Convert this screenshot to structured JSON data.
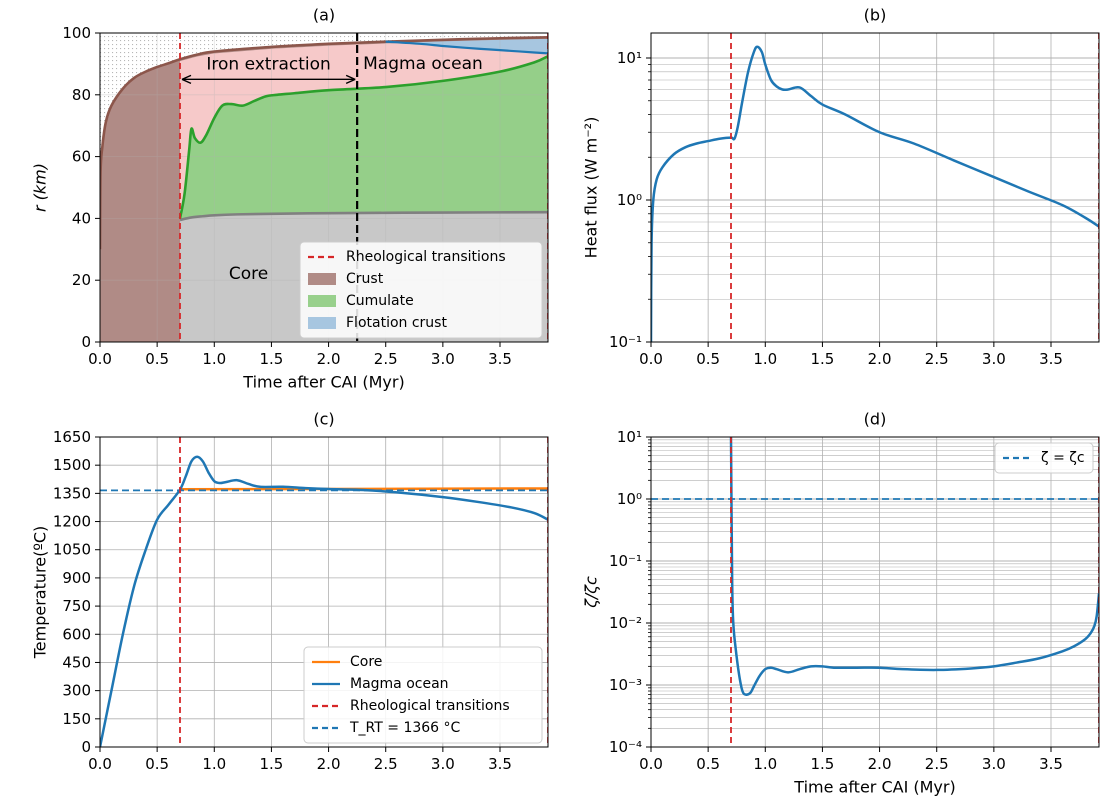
{
  "chart_data": [
    {
      "id": "a",
      "type": "area",
      "title": "(a)",
      "xlabel": "Time after CAI (Myr)",
      "ylabel": "r (km)",
      "xlim": [
        0,
        3.92
      ],
      "ylim": [
        0,
        100
      ],
      "xticks": [
        0,
        0.5,
        1,
        1.5,
        2,
        2.5,
        3,
        3.5
      ],
      "xtick_labels": [
        "0.0",
        "0.5",
        "1.0",
        "1.5",
        "2.0",
        "2.5",
        "3.0",
        "3.5"
      ],
      "yticks": [
        0,
        20,
        40,
        60,
        80,
        100
      ],
      "ytick_labels": [
        "0",
        "20",
        "40",
        "60",
        "80",
        "100"
      ],
      "grid": true,
      "legend_position": "lower-right",
      "series": [
        {
          "name": "Crust",
          "color": "#8c564b",
          "x": [
            0,
            0.005,
            0.02,
            0.05,
            0.1,
            0.2,
            0.3,
            0.4,
            0.5,
            0.6,
            0.7,
            0.85,
            1.0,
            1.5,
            2.0,
            2.5,
            3.0,
            3.5,
            3.92
          ],
          "y": [
            30,
            55,
            63,
            71,
            76.5,
            82,
            85.5,
            87.5,
            89,
            90.2,
            91.5,
            93,
            94,
            95.5,
            96.5,
            97.2,
            97.8,
            98.3,
            98.6
          ]
        },
        {
          "name": "Cumulate",
          "color": "#2ca02c",
          "x": [
            0.7,
            0.74,
            0.78,
            0.8,
            0.83,
            0.88,
            0.93,
            1.0,
            1.07,
            1.15,
            1.25,
            1.35,
            1.45,
            1.55,
            1.7,
            2.0,
            2.5,
            3.0,
            3.5,
            3.8,
            3.92
          ],
          "y": [
            40,
            48,
            62,
            69,
            66,
            64.5,
            67,
            72.5,
            76.5,
            77,
            76.5,
            78,
            79.5,
            80,
            80.5,
            81.5,
            82.5,
            84.5,
            87.5,
            90.5,
            92.5
          ]
        },
        {
          "name": "Core",
          "color": "#808080",
          "x": [
            0.7,
            0.8,
            0.9,
            1.0,
            1.2,
            1.5,
            2.0,
            2.5,
            3.0,
            3.92
          ],
          "y": [
            39.5,
            40.3,
            40.7,
            41,
            41.3,
            41.5,
            41.7,
            41.8,
            41.9,
            42
          ]
        },
        {
          "name": "Flotation crust",
          "color": "#1f77b4",
          "x": [
            2.5,
            2.8,
            3.0,
            3.2,
            3.4,
            3.6,
            3.8,
            3.92
          ],
          "y": [
            97.2,
            96.5,
            95.8,
            95.2,
            94.7,
            94.2,
            93.7,
            93.4
          ]
        }
      ],
      "vlines": [
        {
          "name": "Rheological transitions",
          "x": 0.7,
          "color": "#d62728"
        },
        {
          "name": "Rheological transitions",
          "x": 3.92,
          "color": "#d62728"
        },
        {
          "name": "Iron extraction end",
          "x": 2.25,
          "color": "#000000"
        }
      ],
      "annotations": [
        {
          "text": "Iron extraction",
          "x_from": 0.7,
          "x_to": 2.25,
          "y": 85
        },
        {
          "text": "Magma ocean",
          "x": 2.25,
          "y": 90,
          "color": "#d62728"
        },
        {
          "text": "Core",
          "x": 1.3,
          "y": 22,
          "color": "#808080"
        }
      ],
      "legend": [
        {
          "label": "Rheological transitions",
          "kind": "dashed-line",
          "color": "#d62728"
        },
        {
          "label": "Crust",
          "kind": "patch",
          "color": "#b08b86"
        },
        {
          "label": "Cumulate",
          "kind": "patch",
          "color": "#98d08c"
        },
        {
          "label": "Flotation crust",
          "kind": "patch",
          "color": "#a7c6e0"
        }
      ]
    },
    {
      "id": "b",
      "type": "line",
      "title": "(b)",
      "xlabel": "",
      "ylabel": "Heat flux (W m⁻²)",
      "xlim": [
        0,
        3.92
      ],
      "ylim": [
        0.1,
        15
      ],
      "yscale": "log",
      "xticks": [
        0,
        0.5,
        1,
        1.5,
        2,
        2.5,
        3,
        3.5
      ],
      "xtick_labels": [
        "0.0",
        "0.5",
        "1.0",
        "1.5",
        "2.0",
        "2.5",
        "3.0",
        "3.5"
      ],
      "yticks": [
        0.1,
        1,
        10
      ],
      "ytick_labels": [
        "10⁻¹",
        "10⁰",
        "10¹"
      ],
      "grid": true,
      "series": [
        {
          "name": "Heat flux",
          "color": "#1f77b4",
          "x": [
            0,
            0.005,
            0.02,
            0.05,
            0.1,
            0.2,
            0.3,
            0.4,
            0.5,
            0.6,
            0.7,
            0.73,
            0.76,
            0.8,
            0.85,
            0.9,
            0.93,
            0.97,
            1.0,
            1.05,
            1.1,
            1.15,
            1.2,
            1.3,
            1.4,
            1.5,
            1.7,
            2.0,
            2.3,
            2.65,
            3.0,
            3.3,
            3.6,
            3.8,
            3.92
          ],
          "y": [
            0.1,
            0.5,
            1.0,
            1.4,
            1.7,
            2.1,
            2.35,
            2.5,
            2.6,
            2.7,
            2.75,
            2.7,
            3.3,
            5.0,
            8.0,
            11.0,
            12.0,
            11.0,
            9.0,
            7.0,
            6.3,
            6.0,
            6.0,
            6.2,
            5.4,
            4.7,
            4.0,
            3.0,
            2.5,
            1.9,
            1.45,
            1.15,
            0.92,
            0.75,
            0.65
          ]
        }
      ],
      "vlines": [
        {
          "name": "Rheological transitions",
          "x": 0.7,
          "color": "#d62728"
        },
        {
          "name": "Rheological transitions",
          "x": 3.92,
          "color": "#d62728"
        }
      ]
    },
    {
      "id": "c",
      "type": "line",
      "title": "(c)",
      "xlabel": "",
      "ylabel": "Temperature(ºC)",
      "xlim": [
        0,
        3.92
      ],
      "ylim": [
        0,
        1650
      ],
      "xticks": [
        0,
        0.5,
        1,
        1.5,
        2,
        2.5,
        3,
        3.5
      ],
      "xtick_labels": [
        "0.0",
        "0.5",
        "1.0",
        "1.5",
        "2.0",
        "2.5",
        "3.0",
        "3.5"
      ],
      "yticks": [
        0,
        150,
        300,
        450,
        600,
        750,
        900,
        1050,
        1200,
        1350,
        1500,
        1650
      ],
      "ytick_labels": [
        "0",
        "150",
        "300",
        "450",
        "600",
        "750",
        "900",
        "1050",
        "1200",
        "1350",
        "1500",
        "1650"
      ],
      "grid": true,
      "legend_position": "lower-right",
      "series": [
        {
          "name": "Core",
          "color": "#ff7f0e",
          "x": [
            0.7,
            3.92
          ],
          "y": [
            1372,
            1376
          ]
        },
        {
          "name": "Magma ocean",
          "color": "#1f77b4",
          "x": [
            0,
            0.1,
            0.2,
            0.3,
            0.4,
            0.5,
            0.6,
            0.7,
            0.75,
            0.8,
            0.85,
            0.9,
            0.95,
            1.0,
            1.05,
            1.1,
            1.2,
            1.3,
            1.4,
            1.6,
            1.8,
            2.0,
            2.3,
            2.6,
            3.0,
            3.3,
            3.6,
            3.8,
            3.92
          ],
          "y": [
            0,
            300,
            600,
            860,
            1050,
            1210,
            1290,
            1370,
            1440,
            1520,
            1545,
            1520,
            1460,
            1415,
            1405,
            1410,
            1420,
            1400,
            1385,
            1385,
            1378,
            1373,
            1368,
            1355,
            1330,
            1305,
            1275,
            1245,
            1210
          ]
        }
      ],
      "hlines": [
        {
          "name": "T_RT = 1366 °C",
          "y": 1366,
          "color": "#1f77b4"
        }
      ],
      "vlines": [
        {
          "name": "Rheological transitions",
          "x": 0.7,
          "color": "#d62728"
        },
        {
          "name": "Rheological transitions",
          "x": 3.92,
          "color": "#d62728"
        }
      ],
      "legend": [
        {
          "label": "Core",
          "kind": "line",
          "color": "#ff7f0e"
        },
        {
          "label": "Magma ocean",
          "kind": "line",
          "color": "#1f77b4"
        },
        {
          "label": "Rheological transitions",
          "kind": "dashed-line",
          "color": "#d62728"
        },
        {
          "label": "T_RT = 1366 °C",
          "kind": "dashed-line",
          "color": "#1f77b4"
        }
      ]
    },
    {
      "id": "d",
      "type": "line",
      "title": "(d)",
      "xlabel": "Time after CAI (Myr)",
      "ylabel": "ζ/ζc",
      "xlim": [
        0,
        3.92
      ],
      "ylim": [
        0.0001,
        10
      ],
      "yscale": "log",
      "xticks": [
        0,
        0.5,
        1,
        1.5,
        2,
        2.5,
        3,
        3.5
      ],
      "xtick_labels": [
        "0.0",
        "0.5",
        "1.0",
        "1.5",
        "2.0",
        "2.5",
        "3.0",
        "3.5"
      ],
      "yticks": [
        0.0001,
        0.001,
        0.01,
        0.1,
        1,
        10
      ],
      "ytick_labels": [
        "10⁻⁴",
        "10⁻³",
        "10⁻²",
        "10⁻¹",
        "10⁰",
        "10¹"
      ],
      "grid": true,
      "legend_position": "top-right",
      "series": [
        {
          "name": "ζ/ζc",
          "color": "#1f77b4",
          "x": [
            0.7,
            0.71,
            0.72,
            0.74,
            0.77,
            0.8,
            0.83,
            0.87,
            0.9,
            0.95,
            1.0,
            1.05,
            1.1,
            1.2,
            1.3,
            1.4,
            1.5,
            1.6,
            1.8,
            2.0,
            2.2,
            2.5,
            2.8,
            3.0,
            3.2,
            3.4,
            3.6,
            3.7,
            3.8,
            3.85,
            3.88,
            3.9,
            3.92
          ],
          "y": [
            10,
            0.05,
            0.01,
            0.004,
            0.0015,
            0.0008,
            0.0007,
            0.00075,
            0.00095,
            0.0014,
            0.0018,
            0.0019,
            0.0018,
            0.0016,
            0.0018,
            0.002,
            0.002,
            0.0019,
            0.0019,
            0.0019,
            0.0018,
            0.00175,
            0.00185,
            0.002,
            0.0023,
            0.0027,
            0.0035,
            0.0042,
            0.0055,
            0.007,
            0.009,
            0.013,
            0.03
          ]
        }
      ],
      "hlines": [
        {
          "name": "ζ = ζc",
          "y": 1,
          "color": "#1f77b4"
        }
      ],
      "vlines": [
        {
          "name": "Rheological transitions",
          "x": 0.7,
          "color": "#d62728"
        },
        {
          "name": "Rheological transitions",
          "x": 3.92,
          "color": "#d62728"
        }
      ],
      "legend": [
        {
          "label": "ζ = ζc",
          "kind": "dashed-line",
          "color": "#1f77b4"
        }
      ]
    }
  ]
}
